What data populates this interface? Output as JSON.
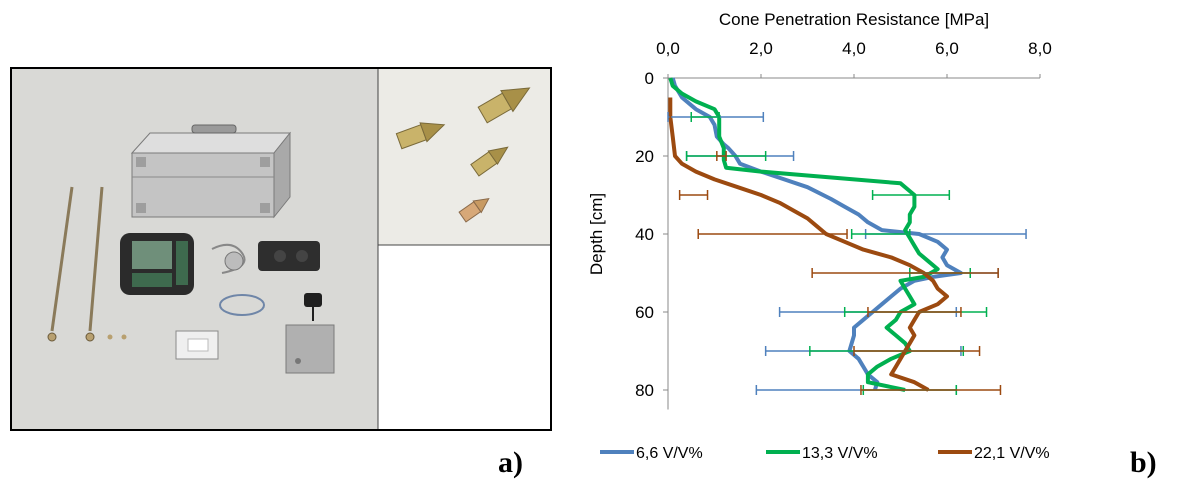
{
  "figure": {
    "label_a": "a)",
    "label_b": "b)"
  },
  "photo": {
    "icons": [
      "instrument-case-icon",
      "penetrometer-rod-icon",
      "cone-tip-icon",
      "data-logger-icon",
      "base-plate-icon"
    ]
  },
  "chart_data": {
    "type": "line",
    "title": "Cone Penetration Resistance [MPa]",
    "xlabel": "Cone Penetration Resistance [MPa]",
    "ylabel": "Depth [cm]",
    "xlim": [
      0,
      8
    ],
    "ylim": [
      0,
      85
    ],
    "y_inverted": true,
    "x_axis_position": "top",
    "x_ticks": [
      "0,0",
      "2,0",
      "4,0",
      "6,0",
      "8,0"
    ],
    "y_ticks": [
      "0",
      "20",
      "40",
      "60",
      "80"
    ],
    "legend_position": "bottom",
    "series": [
      {
        "name": "6,6 V/V%",
        "color": "#4f81bd",
        "points": [
          [
            0.1,
            0
          ],
          [
            0.15,
            2
          ],
          [
            0.3,
            5
          ],
          [
            0.6,
            8
          ],
          [
            0.9,
            10
          ],
          [
            1.0,
            12
          ],
          [
            1.05,
            15
          ],
          [
            1.2,
            17
          ],
          [
            1.3,
            18
          ],
          [
            1.45,
            20
          ],
          [
            1.55,
            22
          ],
          [
            2.0,
            24
          ],
          [
            2.5,
            26
          ],
          [
            3.0,
            28
          ],
          [
            3.5,
            31
          ],
          [
            3.8,
            33
          ],
          [
            4.1,
            35
          ],
          [
            4.3,
            37
          ],
          [
            4.6,
            39
          ],
          [
            5.4,
            40
          ],
          [
            5.8,
            42
          ],
          [
            6.0,
            44
          ],
          [
            5.9,
            46
          ],
          [
            6.0,
            48
          ],
          [
            6.3,
            50
          ],
          [
            5.7,
            51
          ],
          [
            5.3,
            52
          ],
          [
            5.0,
            54
          ],
          [
            4.8,
            56
          ],
          [
            4.6,
            58
          ],
          [
            4.4,
            60
          ],
          [
            4.2,
            62
          ],
          [
            4.0,
            64
          ],
          [
            4.0,
            66
          ],
          [
            3.95,
            68
          ],
          [
            3.9,
            70
          ],
          [
            4.1,
            72
          ],
          [
            4.2,
            74
          ],
          [
            4.3,
            76
          ],
          [
            4.5,
            78
          ],
          [
            4.45,
            80
          ]
        ],
        "error_bars": [
          {
            "depth": 10,
            "center": 0.5,
            "minus": 0.5,
            "plus": 1.55
          },
          {
            "depth": 20,
            "center": 1.2,
            "minus": 0.8,
            "plus": 1.5
          },
          {
            "depth": 40,
            "center": 5.45,
            "minus": 1.2,
            "plus": 2.25
          },
          {
            "depth": 50,
            "center": 6.2,
            "minus": 1.0,
            "plus": 0.9
          },
          {
            "depth": 60,
            "center": 4.3,
            "minus": 1.9,
            "plus": 1.9
          },
          {
            "depth": 70,
            "center": 4.2,
            "minus": 2.1,
            "plus": 2.1
          },
          {
            "depth": 80,
            "center": 4.1,
            "minus": 2.2,
            "plus": 2.1
          }
        ]
      },
      {
        "name": "13,3 V/V%",
        "color": "#00b050",
        "points": [
          [
            0.05,
            0
          ],
          [
            0.1,
            2
          ],
          [
            0.3,
            4
          ],
          [
            0.6,
            6
          ],
          [
            1.0,
            8
          ],
          [
            1.1,
            10
          ],
          [
            1.1,
            12
          ],
          [
            1.1,
            15
          ],
          [
            1.2,
            18
          ],
          [
            1.2,
            21
          ],
          [
            1.25,
            23
          ],
          [
            2.0,
            24
          ],
          [
            3.0,
            25
          ],
          [
            4.0,
            26
          ],
          [
            5.0,
            27
          ],
          [
            5.2,
            29
          ],
          [
            5.3,
            30
          ],
          [
            5.3,
            31
          ],
          [
            5.3,
            33
          ],
          [
            5.2,
            35
          ],
          [
            5.2,
            37
          ],
          [
            5.1,
            39
          ],
          [
            5.2,
            41
          ],
          [
            5.3,
            43
          ],
          [
            5.4,
            45
          ],
          [
            5.6,
            47
          ],
          [
            5.8,
            49
          ],
          [
            5.5,
            51
          ],
          [
            5.0,
            52
          ],
          [
            5.1,
            54
          ],
          [
            5.2,
            56
          ],
          [
            5.3,
            58
          ],
          [
            5.0,
            60
          ],
          [
            4.9,
            62
          ],
          [
            4.7,
            64
          ],
          [
            4.9,
            66
          ],
          [
            5.1,
            68
          ],
          [
            5.2,
            70
          ],
          [
            4.8,
            72
          ],
          [
            4.5,
            74
          ],
          [
            4.3,
            76
          ],
          [
            4.3,
            78
          ],
          [
            5.1,
            80
          ]
        ],
        "error_bars": [
          {
            "depth": 10,
            "center": 1.0,
            "minus": 0.5,
            "plus": 0.1
          },
          {
            "depth": 20,
            "center": 1.1,
            "minus": 0.7,
            "plus": 1.0
          },
          {
            "depth": 30,
            "center": 5.2,
            "minus": 0.8,
            "plus": 0.85
          },
          {
            "depth": 40,
            "center": 4.5,
            "minus": 0.55,
            "plus": 0.7
          },
          {
            "depth": 50,
            "center": 5.8,
            "minus": 0.6,
            "plus": 0.7
          },
          {
            "depth": 60,
            "center": 5.3,
            "minus": 1.5,
            "plus": 1.55
          },
          {
            "depth": 70,
            "center": 4.85,
            "minus": 1.8,
            "plus": 1.5
          },
          {
            "depth": 80,
            "center": 5.1,
            "minus": 0.9,
            "plus": 1.1
          }
        ]
      },
      {
        "name": "22,1 V/V%",
        "color": "#9c4a10",
        "points": [
          [
            0.05,
            5
          ],
          [
            0.05,
            10
          ],
          [
            0.1,
            15
          ],
          [
            0.15,
            20
          ],
          [
            0.3,
            22
          ],
          [
            0.6,
            24
          ],
          [
            1.0,
            26
          ],
          [
            1.5,
            28
          ],
          [
            2.0,
            30
          ],
          [
            2.4,
            32
          ],
          [
            2.7,
            34
          ],
          [
            3.0,
            36
          ],
          [
            3.2,
            38
          ],
          [
            3.4,
            40
          ],
          [
            3.8,
            42
          ],
          [
            4.2,
            44
          ],
          [
            4.8,
            46
          ],
          [
            5.2,
            48
          ],
          [
            5.5,
            50
          ],
          [
            5.7,
            52
          ],
          [
            5.8,
            54
          ],
          [
            6.0,
            56
          ],
          [
            5.8,
            58
          ],
          [
            5.4,
            60
          ],
          [
            5.3,
            62
          ],
          [
            5.2,
            64
          ],
          [
            5.3,
            66
          ],
          [
            5.2,
            68
          ],
          [
            5.1,
            70
          ],
          [
            5.0,
            72
          ],
          [
            4.9,
            74
          ],
          [
            4.8,
            76
          ],
          [
            5.3,
            78
          ],
          [
            5.6,
            80
          ]
        ],
        "error_bars": [
          {
            "depth": 10,
            "center": 0.05,
            "minus": 0.0,
            "plus": 0.0
          },
          {
            "depth": 20,
            "center": 1.15,
            "minus": 0.1,
            "plus": 0.1
          },
          {
            "depth": 30,
            "center": 0.55,
            "minus": 0.3,
            "plus": 0.3
          },
          {
            "depth": 40,
            "center": 2.25,
            "minus": 1.6,
            "plus": 1.6
          },
          {
            "depth": 50,
            "center": 5.1,
            "minus": 2.0,
            "plus": 2.0
          },
          {
            "depth": 60,
            "center": 5.3,
            "minus": 1.0,
            "plus": 1.0
          },
          {
            "depth": 70,
            "center": 5.3,
            "minus": 1.3,
            "plus": 1.4
          },
          {
            "depth": 80,
            "center": 5.65,
            "minus": 1.5,
            "plus": 1.5
          }
        ]
      }
    ]
  }
}
